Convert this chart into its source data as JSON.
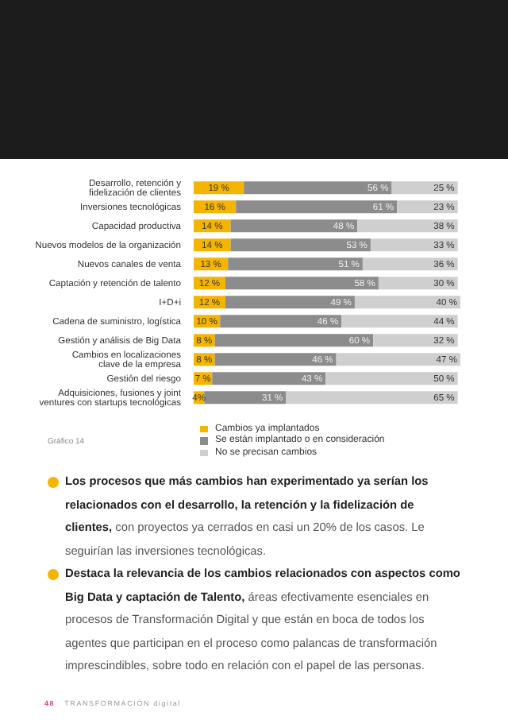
{
  "chart_data": {
    "type": "bar",
    "orientation": "horizontal",
    "stacked": true,
    "categories": [
      "Desarrollo, retención y fidelización de clientes",
      "Inversiones tecnológicas",
      "Capacidad productiva",
      "Nuevos modelos de la organización",
      "Nuevos canales de venta",
      "Captación y retención de talento",
      "I+D+i",
      "Cadena de suministro, logística",
      "Gestión y análisis de Big Data",
      "Cambios en localizaciones clave de la empresa",
      "Gestión del riesgo",
      "Adquisiciones, fusiones y joint ventures con startups tecnológicas"
    ],
    "series": [
      {
        "name": "Cambios ya implantados",
        "color": "#f5b400",
        "values": [
          19,
          16,
          14,
          14,
          13,
          12,
          12,
          10,
          8,
          8,
          7,
          4
        ],
        "value_labels": [
          "19 %",
          "16 %",
          "14 %",
          "14 %",
          "13 %",
          "12 %",
          "12 %",
          "10 %",
          "8 %",
          "8 %",
          "7 %",
          "4%"
        ]
      },
      {
        "name": "Se están implantado o en consideración",
        "color": "#8c8c8c",
        "values": [
          56,
          61,
          48,
          53,
          51,
          58,
          49,
          46,
          60,
          46,
          43,
          31
        ],
        "value_labels": [
          "56 %",
          "61 %",
          "48 %",
          "53 %",
          "51 %",
          "58 %",
          "49 %",
          "46 %",
          "60 %",
          "46 %",
          "43 %",
          "31 %"
        ]
      },
      {
        "name": "No se precisan cambios",
        "color": "#cfcfcf",
        "values": [
          25,
          23,
          38,
          33,
          36,
          30,
          40,
          44,
          32,
          47,
          50,
          65
        ],
        "value_labels": [
          "25 %",
          "23 %",
          "38 %",
          "33 %",
          "36 %",
          "30 %",
          "40 %",
          "44 %",
          "32 %",
          "47 %",
          "50 %",
          "65 %"
        ]
      }
    ],
    "xlim": [
      0,
      101
    ],
    "tick_labels": "y",
    "legend": "bottom",
    "annotations": [
      "Gráfico 14",
      "Los procesos que más cambios han experimentado ya serían los relacionados con el desarrollo, la retención y la fidelización de clientes,",
      "con proyectos ya cerrados en casi un 20% de los casos. Le seguirían las inversiones tecnológicas.",
      "Destaca la relevancia de los cambios relacionados con aspectos como Big Data y captación de Talento,",
      "áreas efectivamente esenciales en procesos de Transformación Digital y que están en boca de todos los agentes que participan en el proceso como palancas de transformación imprescindibles, sobre todo en relación con el papel de las personas.",
      "48",
      "TRANSFORMACIÓN digital"
    ]
  }
}
